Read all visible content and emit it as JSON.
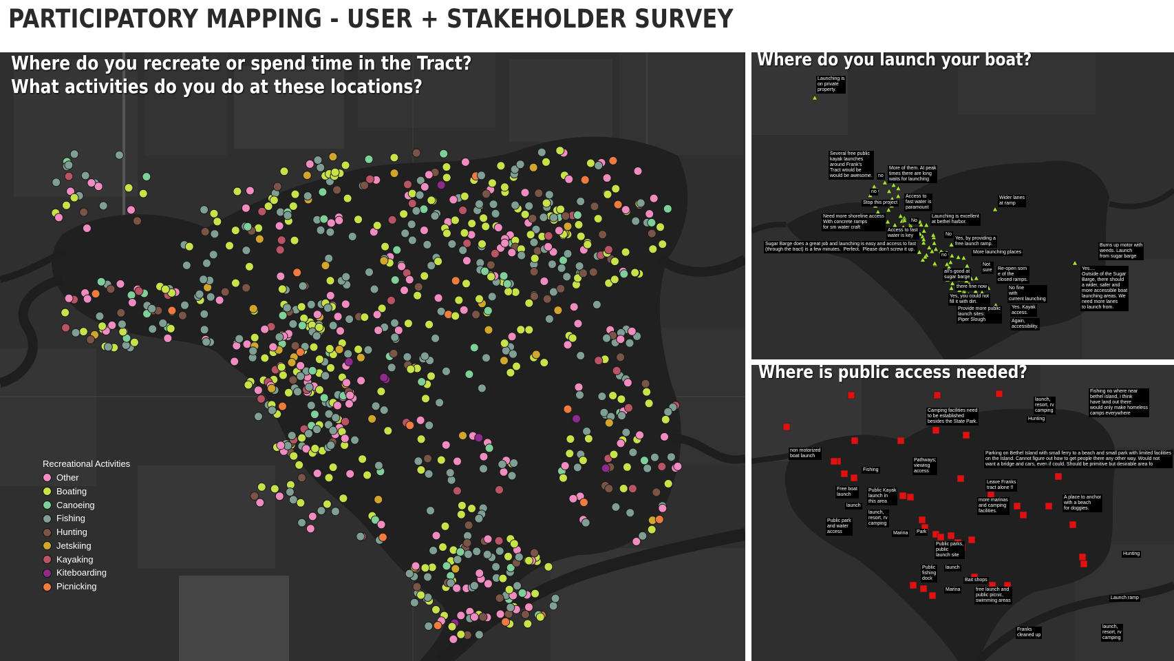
{
  "title": "PARTICIPATORY MAPPING - USER + STAKEHOLDER SURVEY",
  "main_panel": {
    "title_line1": "Where do you recreate or spend time in the Tract?",
    "title_line2": "What activities do you do at these locations?"
  },
  "legend": {
    "title": "Recreational Activities",
    "items": [
      {
        "label": "Other",
        "color": "#f08cc0"
      },
      {
        "label": "Boating",
        "color": "#c8e24a"
      },
      {
        "label": "Canoeing",
        "color": "#7fcf9a"
      },
      {
        "label": "Fishing",
        "color": "#7f9f95"
      },
      {
        "label": "Hunting",
        "color": "#7a5446"
      },
      {
        "label": "Jetskiing",
        "color": "#d2a62c"
      },
      {
        "label": "Kayaking",
        "color": "#b85463"
      },
      {
        "label": "Kiteboarding",
        "color": "#8e2a8a"
      },
      {
        "label": "Picnicking",
        "color": "#ef7b3e"
      }
    ]
  },
  "boat_panel": {
    "title": "Where do you launch your boat?",
    "marker_color": "#a6e22e",
    "notes": [
      "Launching is\non private\nproperty.",
      "Several free public\nkayak launches\naround Frank's\nTract would be\nwould be awesome.",
      "no",
      "More of them. At peak\ntimes there are long\nwaits for launching",
      "no",
      "Stop this project",
      "Access to\nfast water is\nparamount",
      "Wider lanes\nat ramp",
      "Need more shoreline access\nWith concrete ramps\nfor sm water craft",
      "No",
      "Launching is excellent\nat bethel harbor.",
      "Access to fast\nwater is key",
      "No",
      "Yes, by providing a\nfree launch ramp.",
      "Sugar Barge does a great job and launching is easy and access to fast\n(through the tract) is a few minutes.  Perfect.  Please don't screw it up.",
      "no",
      "More launching places",
      "Burns up motor with\nweeds. Launch\nfrom sugar barge",
      "Not\nsure",
      "Re-open som\ne of the\nclosed ramps.",
      "all's good at\nsugar barge",
      "Yes....\nOutside of the Sugar\nBarge, there should\na wider, safer and\nmore accessible boat\nlaunching areas. We\nneed more lanes\nto launch from.",
      "there fine now",
      "No fine\nwith\ncurrent launching",
      "Yes, you could not\nfill it with dirt.",
      "Provide more public\nlaunch sites:\nPiper Slough",
      "Yes. Kayak\naccess.",
      "Again,\naccessibility."
    ]
  },
  "access_panel": {
    "title": "Where is public access needed?",
    "marker_color": "#e01010",
    "notes": [
      "Camping facilities need\nto be established\nbesides the State Park.",
      "launch,\nresort, rv\ncamping",
      "Hunting",
      "Fishing no where near\nbethel island, i think\nhave land out there\nwould only make homeless\ncamps everywhere",
      "non motorized\nboat launch",
      "Parking on Bethel Island with small ferry to a beach and small park with limited facilities\non the Island. Cannot figure out how to get people there any other way. Would not\nwant a bridge and cars, even if could. Should be primitive but desirable area fo",
      "Pathways;\nviewing\naccess",
      "Fishing",
      "Leave Franks\ntract alone !!",
      "Free boat\nlaunch",
      "Public Kayak\nlaunch in\nthis area",
      "more marinas\nand camping\nfacilities.",
      "A place to anchor\nwith a beach\nfor doggies.",
      "launch",
      "launch,\nresort, rv\ncamping",
      "Public park\nand water\naccess",
      "Marina",
      "Park",
      "Public parks,\npublic\nlaunch site",
      "Hunting",
      "Public\nfishing\ndock",
      "launch",
      "Bait shops",
      "Marina",
      "free launch and\npublic picnic,\nswimming areas",
      "Launch ramp",
      "Franks\ncleaned up",
      "launch,\nresort, rv\ncamping"
    ]
  }
}
